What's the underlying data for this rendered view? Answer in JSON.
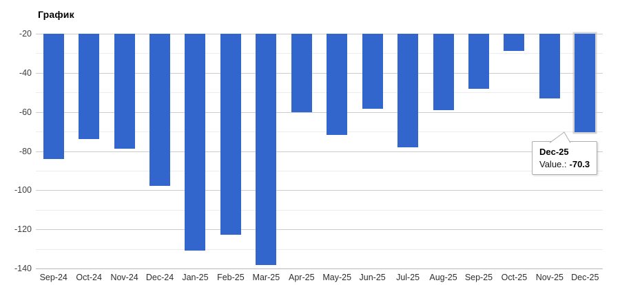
{
  "title": "График",
  "tooltip": {
    "header": "Dec-25",
    "label": "Value.:",
    "value": "-70.3"
  },
  "colors": {
    "bar": "#3366cc",
    "major_grid": "#cccccc",
    "minor_grid": "#ececec",
    "baseline": "#b8b8b8",
    "tooltip_border": "#adadad",
    "axis_label": "#3d3d3d"
  },
  "chart_data": {
    "type": "bar",
    "title": "График",
    "categories": [
      "Sep-24",
      "Oct-24",
      "Nov-24",
      "Dec-24",
      "Jan-25",
      "Feb-25",
      "Mar-25",
      "Apr-25",
      "May-25",
      "Jun-25",
      "Jul-25",
      "Aug-25",
      "Sep-25",
      "Oct-25",
      "Nov-25",
      "Dec-25"
    ],
    "values": [
      -84.0,
      -74.0,
      -78.9,
      -97.8,
      -130.9,
      -122.9,
      -138.4,
      -60.2,
      -71.6,
      -58.4,
      -78.0,
      -59.2,
      -48.0,
      -28.7,
      -53.0,
      -70.3
    ],
    "xlabel": "",
    "ylabel": "",
    "ylim": [
      -140,
      -20
    ],
    "yticks": [
      -20,
      -40,
      -60,
      -80,
      -100,
      -120,
      -140
    ],
    "minor_yticks": [
      -30,
      -50,
      -70,
      -90,
      -110,
      -130
    ],
    "grid": "on",
    "legend": "none",
    "bar_color": "#3366cc",
    "highlighted_index": 15,
    "highlighted_tooltip": {
      "category": "Dec-25",
      "value": -70.3
    }
  }
}
